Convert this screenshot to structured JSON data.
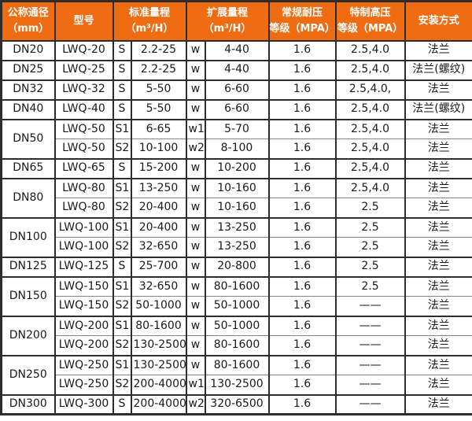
{
  "colors": {
    "header_bg": "#ef6c12",
    "header_text": "#ffffff",
    "border": "#2d2d2d",
    "inner_border": "#858585",
    "text": "#1a1a1a"
  },
  "table": {
    "headers": [
      {
        "label": "公称通径\n（mm）",
        "colspan": 1
      },
      {
        "label": "型号",
        "colspan": 1
      },
      {
        "label": "标准量程\n（m³/H）",
        "colspan": 2
      },
      {
        "label": "扩展量程\n（m³/H）",
        "colspan": 2
      },
      {
        "label": "常规耐压\n等级（MPA）",
        "colspan": 1
      },
      {
        "label": "特制高压\n等级（MPA）",
        "colspan": 1
      },
      {
        "label": "安装方式",
        "colspan": 1
      }
    ],
    "groups": [
      {
        "diameter": "DN20",
        "rows": [
          {
            "model": "LWQ-20",
            "std_code": "S",
            "std_range": "2.2-25",
            "ext_code": "w",
            "ext_range": "4-40",
            "pressure": "1.6",
            "high_pressure": "2.5,4.0",
            "install": "法兰"
          }
        ]
      },
      {
        "diameter": "DN25",
        "rows": [
          {
            "model": "LWQ-25",
            "std_code": "S",
            "std_range": "2.2-25",
            "ext_code": "w",
            "ext_range": "4-40",
            "pressure": "1.6",
            "high_pressure": "2.5,4.0",
            "install": "法兰(螺纹)"
          }
        ]
      },
      {
        "diameter": "DN32",
        "rows": [
          {
            "model": "LWQ-32",
            "std_code": "S",
            "std_range": "5-50",
            "ext_code": "w",
            "ext_range": "6-60",
            "pressure": "1.6",
            "high_pressure": "2.5,4.0,",
            "install": "法兰"
          }
        ]
      },
      {
        "diameter": "DN40",
        "rows": [
          {
            "model": "LWQ-40",
            "std_code": "S",
            "std_range": "5-50",
            "ext_code": "w",
            "ext_range": "6-60",
            "pressure": "1.6",
            "high_pressure": "2.5,4.0",
            "install": "法兰(螺纹)"
          }
        ]
      },
      {
        "diameter": "DN50",
        "rows": [
          {
            "model": "LWQ-50",
            "std_code": "S1",
            "std_range": "6-65",
            "ext_code": "w1",
            "ext_range": "5-70",
            "pressure": "1.6",
            "high_pressure": "2.5,4.0",
            "install": "法兰"
          },
          {
            "model": "LWQ-50",
            "std_code": "S2",
            "std_range": "10-100",
            "ext_code": "w2",
            "ext_range": "8-100",
            "pressure": "1.6",
            "high_pressure": "2.5,4.0",
            "install": "法兰"
          }
        ]
      },
      {
        "diameter": "DN65",
        "rows": [
          {
            "model": "LWQ-65",
            "std_code": "S",
            "std_range": "15-200",
            "ext_code": "w",
            "ext_range": "10-200",
            "pressure": "1.6",
            "high_pressure": "2.5,4.0",
            "install": "法兰"
          }
        ]
      },
      {
        "diameter": "DN80",
        "rows": [
          {
            "model": "LWQ-80",
            "std_code": "S1",
            "std_range": "13-250",
            "ext_code": "w",
            "ext_range": "10-160",
            "pressure": "1.6",
            "high_pressure": "2.5,4.0",
            "install": "法兰"
          },
          {
            "model": "LWQ-80",
            "std_code": "S2",
            "std_range": "20-400",
            "ext_code": "w",
            "ext_range": "10-160",
            "pressure": "1.6",
            "high_pressure": "2.5",
            "install": "法兰"
          }
        ]
      },
      {
        "diameter": "DN100",
        "rows": [
          {
            "model": "LWQ-100",
            "std_code": "S1",
            "std_range": "20-400",
            "ext_code": "w",
            "ext_range": "13-250",
            "pressure": "1.6",
            "high_pressure": "2.5",
            "install": "法兰"
          },
          {
            "model": "LWQ-100",
            "std_code": "S2",
            "std_range": "32-650",
            "ext_code": "w",
            "ext_range": "13-250",
            "pressure": "1.6",
            "high_pressure": "2.5",
            "install": "法兰"
          }
        ]
      },
      {
        "diameter": "DN125",
        "rows": [
          {
            "model": "LWQ-125",
            "std_code": "S",
            "std_range": "25-700",
            "ext_code": "w",
            "ext_range": "20-800",
            "pressure": "1.6",
            "high_pressure": "2.5",
            "install": "法兰"
          }
        ]
      },
      {
        "diameter": "DN150",
        "rows": [
          {
            "model": "LWQ-150",
            "std_code": "S1",
            "std_range": "32-650",
            "ext_code": "w",
            "ext_range": "80-1600",
            "pressure": "1.6",
            "high_pressure": "2.5",
            "install": "法兰"
          },
          {
            "model": "LWQ-150",
            "std_code": "S2",
            "std_range": "50-1000",
            "ext_code": "w",
            "ext_range": "50-1000",
            "pressure": "1.6",
            "high_pressure": "——",
            "install": "法兰"
          }
        ]
      },
      {
        "diameter": "DN200",
        "rows": [
          {
            "model": "LWQ-200",
            "std_code": "S1",
            "std_range": "80-1600",
            "ext_code": "w",
            "ext_range": "50-1000",
            "pressure": "1.6",
            "high_pressure": "——",
            "install": "法兰"
          },
          {
            "model": "LWQ-200",
            "std_code": "S2",
            "std_range": "130-2500",
            "ext_code": "w",
            "ext_range": "80-1600",
            "pressure": "1.6",
            "high_pressure": "——",
            "install": "法兰"
          }
        ]
      },
      {
        "diameter": "DN250",
        "rows": [
          {
            "model": "LWQ-250",
            "std_code": "S1",
            "std_range": "130-2500",
            "ext_code": "w",
            "ext_range": "80-1600",
            "pressure": "1.6",
            "high_pressure": "——",
            "install": "法兰"
          },
          {
            "model": "LWQ-250",
            "std_code": "S2",
            "std_range": "200-4000",
            "ext_code": "w1",
            "ext_range": "130-2500",
            "pressure": "1.6",
            "high_pressure": "——",
            "install": "法兰"
          }
        ]
      },
      {
        "diameter": "DN300",
        "rows": [
          {
            "model": "LWQ-300",
            "std_code": "S",
            "std_range": "200-4000",
            "ext_code": "w2",
            "ext_range": "320-6500",
            "pressure": "1.6",
            "high_pressure": "——",
            "install": "法兰"
          }
        ]
      }
    ]
  }
}
